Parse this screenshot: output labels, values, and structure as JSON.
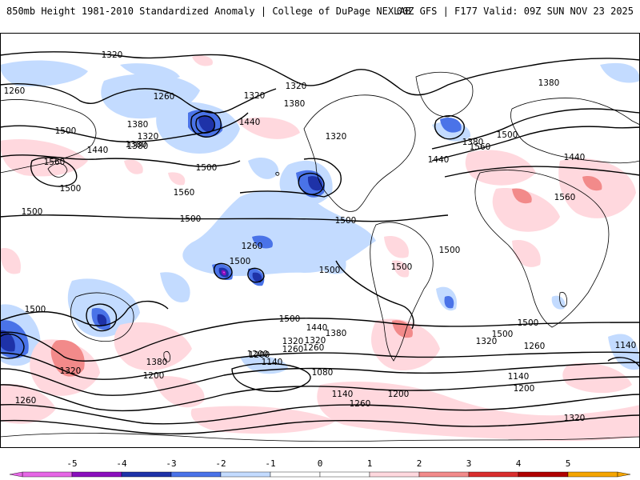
{
  "header": {
    "title_left": "850mb Height 1981-2010 Standardized Anomaly | College of DuPage NEXLAB",
    "title_right": "00Z GFS | F177 Valid: 09Z SUN NOV 23 2025"
  },
  "colors": {
    "neg5": "#e667e6",
    "neg4": "#8a0fbd",
    "neg3": "#1e32a8",
    "neg2": "#4a73e8",
    "neg1": "#c3dbff",
    "pos1": "#ffd8de",
    "pos2": "#f28a8a",
    "pos3": "#d92e2e",
    "pos4": "#b00000",
    "pos5": "#f5a500",
    "land": "#000000",
    "contour": "#000000"
  },
  "colorbar": {
    "ticks": [
      "-5",
      "-4",
      "-3",
      "-2",
      "-1",
      "0",
      "1",
      "2",
      "3",
      "4",
      "5"
    ]
  },
  "contour_labels": [
    "1320",
    "1260",
    "1500",
    "1440",
    "1380",
    "1260",
    "1320",
    "1380",
    "1320",
    "1440",
    "1380",
    "1560",
    "1500",
    "1560",
    "1500",
    "1500",
    "1380",
    "1320",
    "1260",
    "1500",
    "1500",
    "1500",
    "1500",
    "1320",
    "1500",
    "1560",
    "1440",
    "1380",
    "1380",
    "1560",
    "1500",
    "1500",
    "1440",
    "1500",
    "1380",
    "1320",
    "1260",
    "1200",
    "1140",
    "1080",
    "1200",
    "1500",
    "1440",
    "1380",
    "1320",
    "1260",
    "1200",
    "1140",
    "1140",
    "1320",
    "1260",
    "1200",
    "1260",
    "1320",
    "1260",
    "1320",
    "1140",
    "1200",
    "1500",
    "1500"
  ]
}
